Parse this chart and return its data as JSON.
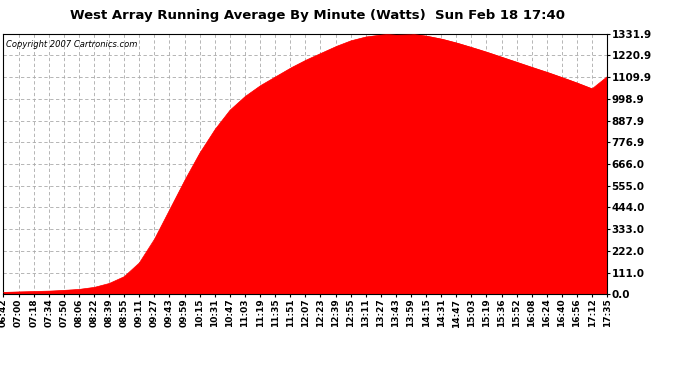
{
  "title": "West Array Running Average By Minute (Watts)  Sun Feb 18 17:40",
  "copyright": "Copyright 2007 Cartronics.com",
  "background_color": "#ffffff",
  "plot_background_color": "#ffffff",
  "fill_color": "#ff0000",
  "line_color": "#ff0000",
  "grid_color": "#aaaaaa",
  "yticks": [
    0.0,
    111.0,
    222.0,
    333.0,
    444.0,
    555.0,
    666.0,
    776.9,
    887.9,
    998.9,
    1109.9,
    1220.9,
    1331.9
  ],
  "ymax": 1331.9,
  "ymin": 0.0,
  "xtick_labels": [
    "06:42",
    "07:00",
    "07:18",
    "07:34",
    "07:50",
    "08:06",
    "08:22",
    "08:39",
    "08:55",
    "09:11",
    "09:27",
    "09:43",
    "09:59",
    "10:15",
    "10:31",
    "10:47",
    "11:03",
    "11:19",
    "11:35",
    "11:51",
    "12:07",
    "12:23",
    "12:39",
    "12:55",
    "13:11",
    "13:27",
    "13:43",
    "13:59",
    "14:15",
    "14:31",
    "14:47",
    "15:03",
    "15:19",
    "15:36",
    "15:52",
    "16:08",
    "16:24",
    "16:40",
    "16:56",
    "17:12",
    "17:35"
  ],
  "data_x": [
    0,
    1,
    2,
    3,
    4,
    5,
    6,
    7,
    8,
    9,
    10,
    11,
    12,
    13,
    14,
    15,
    16,
    17,
    18,
    19,
    20,
    21,
    22,
    23,
    24,
    25,
    26,
    27,
    28,
    29,
    30,
    31,
    32,
    33,
    34,
    35,
    36,
    37,
    38,
    39,
    40
  ],
  "data_y": [
    10,
    12,
    14,
    16,
    20,
    25,
    35,
    55,
    90,
    160,
    280,
    430,
    580,
    720,
    840,
    940,
    1010,
    1065,
    1110,
    1155,
    1195,
    1230,
    1265,
    1295,
    1315,
    1325,
    1332,
    1330,
    1320,
    1305,
    1285,
    1262,
    1238,
    1212,
    1186,
    1160,
    1135,
    1108,
    1080,
    1050,
    1112
  ]
}
